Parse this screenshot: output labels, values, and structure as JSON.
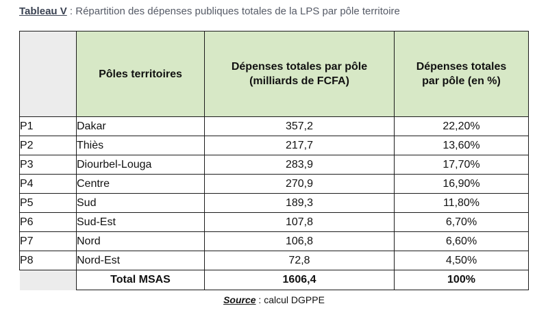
{
  "caption": {
    "label": "Tableau V",
    "text": " : Répartition des dépenses publiques totales de la LPS par pôle territoire"
  },
  "table": {
    "headers": [
      "",
      "Pôles territoires",
      "Dépenses totales par pôle (milliards de FCFA)",
      "Dépenses totales par pôle (en %)"
    ],
    "rows": [
      [
        "P1",
        "Dakar",
        "357,2",
        "22,20%"
      ],
      [
        "P2",
        "Thiès",
        "217,7",
        "13,60%"
      ],
      [
        "P3",
        "Diourbel-Louga",
        "283,9",
        "17,70%"
      ],
      [
        "P4",
        "Centre",
        "270,9",
        "16,90%"
      ],
      [
        "P5",
        "Sud",
        "189,3",
        "11,80%"
      ],
      [
        "P6",
        "Sud-Est",
        "107,8",
        "6,70%"
      ],
      [
        "P7",
        "Nord",
        "106,8",
        "6,60%"
      ],
      [
        "P8",
        "Nord-Est",
        "72,8",
        "4,50%"
      ]
    ],
    "total": [
      "Total MSAS",
      "1606,4",
      "100%"
    ]
  },
  "source": {
    "label": "Source",
    "text": " : calcul DGPPE"
  },
  "colors": {
    "header_bg": "#d7e8c6",
    "blank_bg": "#ececec",
    "caption_text": "#555a66"
  }
}
